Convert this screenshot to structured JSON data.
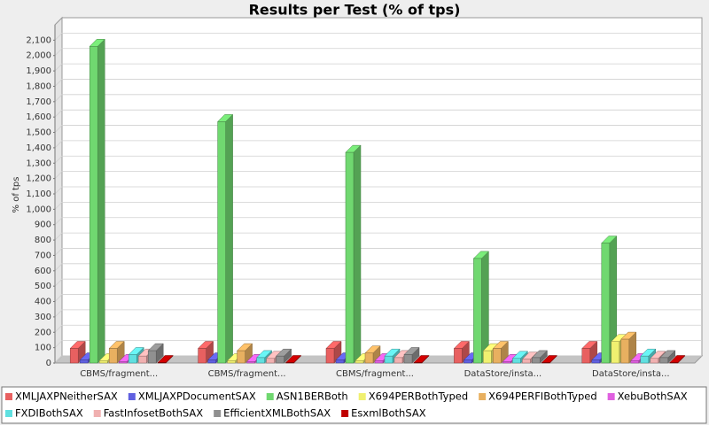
{
  "chart_data": {
    "type": "bar3d",
    "title": "Results per Test (% of tps)",
    "ylabel": "% of tps",
    "categories": [
      "CBMS/fragment...",
      "CBMS/fragment...",
      "CBMS/fragment...",
      "DataStore/insta...",
      "DataStore/insta..."
    ],
    "series": [
      {
        "name": "XMLJAXPNeitherSAX",
        "color": "#e86060",
        "values": [
          95,
          95,
          95,
          95,
          95
        ]
      },
      {
        "name": "XMLJAXPDocumentSAX",
        "color": "#6060e0",
        "values": [
          20,
          20,
          20,
          20,
          20
        ]
      },
      {
        "name": "ASN1BERBoth",
        "color": "#70d870",
        "values": [
          2060,
          1570,
          1370,
          680,
          780
        ]
      },
      {
        "name": "X694PERBothTyped",
        "color": "#f0f070",
        "values": [
          15,
          15,
          15,
          80,
          140
        ]
      },
      {
        "name": "X694PERFIBothTyped",
        "color": "#e8b060",
        "values": [
          95,
          80,
          65,
          95,
          155
        ]
      },
      {
        "name": "XebuBothSAX",
        "color": "#e060e0",
        "values": [
          10,
          10,
          15,
          10,
          15
        ]
      },
      {
        "name": "FXDIBothSAX",
        "color": "#60e0e0",
        "values": [
          55,
          35,
          45,
          30,
          45
        ]
      },
      {
        "name": "FastInfosetBothSAX",
        "color": "#f0b0b0",
        "values": [
          45,
          30,
          35,
          25,
          30
        ]
      },
      {
        "name": "EfficientXMLBothSAX",
        "color": "#909090",
        "values": [
          80,
          45,
          55,
          35,
          35
        ]
      },
      {
        "name": "EsxmlBothSAX",
        "color": "#c00000",
        "values": [
          3,
          3,
          3,
          3,
          3
        ]
      }
    ],
    "ylim": [
      0,
      2200
    ],
    "yticks": [
      0,
      100,
      200,
      300,
      400,
      500,
      600,
      700,
      800,
      900,
      {
        "value": 1000,
        "label": "1,000"
      },
      {
        "value": 1100,
        "label": "1,100"
      },
      {
        "value": 1200,
        "label": "1,200"
      },
      {
        "value": 1300,
        "label": "1,300"
      },
      {
        "value": 1400,
        "label": "1,400"
      },
      {
        "value": 1500,
        "label": "1,500"
      },
      {
        "value": 1600,
        "label": "1,600"
      },
      {
        "value": 1700,
        "label": "1,700"
      },
      {
        "value": 1800,
        "label": "1,800"
      },
      {
        "value": 1900,
        "label": "1,900"
      },
      {
        "value": 2000,
        "label": "2,000"
      },
      {
        "value": 2100,
        "label": "2,100"
      }
    ],
    "grid": true,
    "legend": "bottom"
  }
}
